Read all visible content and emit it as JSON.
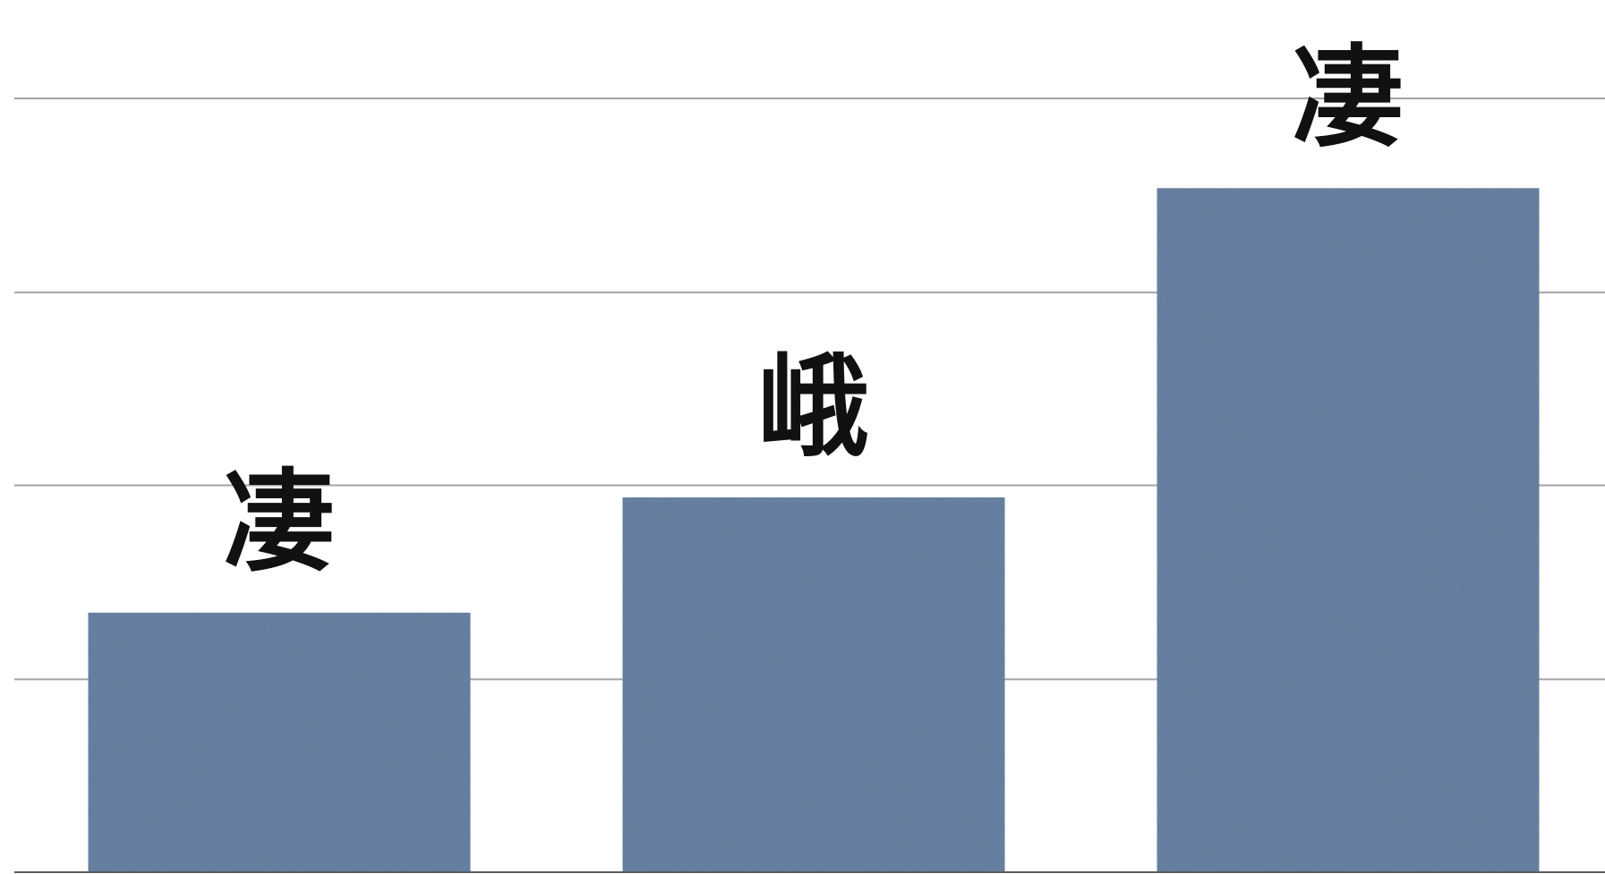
{
  "chart_data": {
    "type": "bar",
    "categories": [
      "凄",
      "峨",
      "凄"
    ],
    "values": [
      21.4,
      30.9,
      56.4
    ],
    "data_labels": [
      "凄",
      "峨",
      "凄"
    ],
    "title": "",
    "xlabel": "",
    "ylabel": "",
    "ylim": [
      0,
      63.8
    ],
    "gridline_values": [
      15.9,
      31.9,
      47.8,
      63.8
    ],
    "grid": true,
    "legend": "none",
    "bar_color": "#5c7699",
    "gridline_color": "#a3a3a3",
    "axis_color": "#5b5b5b"
  }
}
